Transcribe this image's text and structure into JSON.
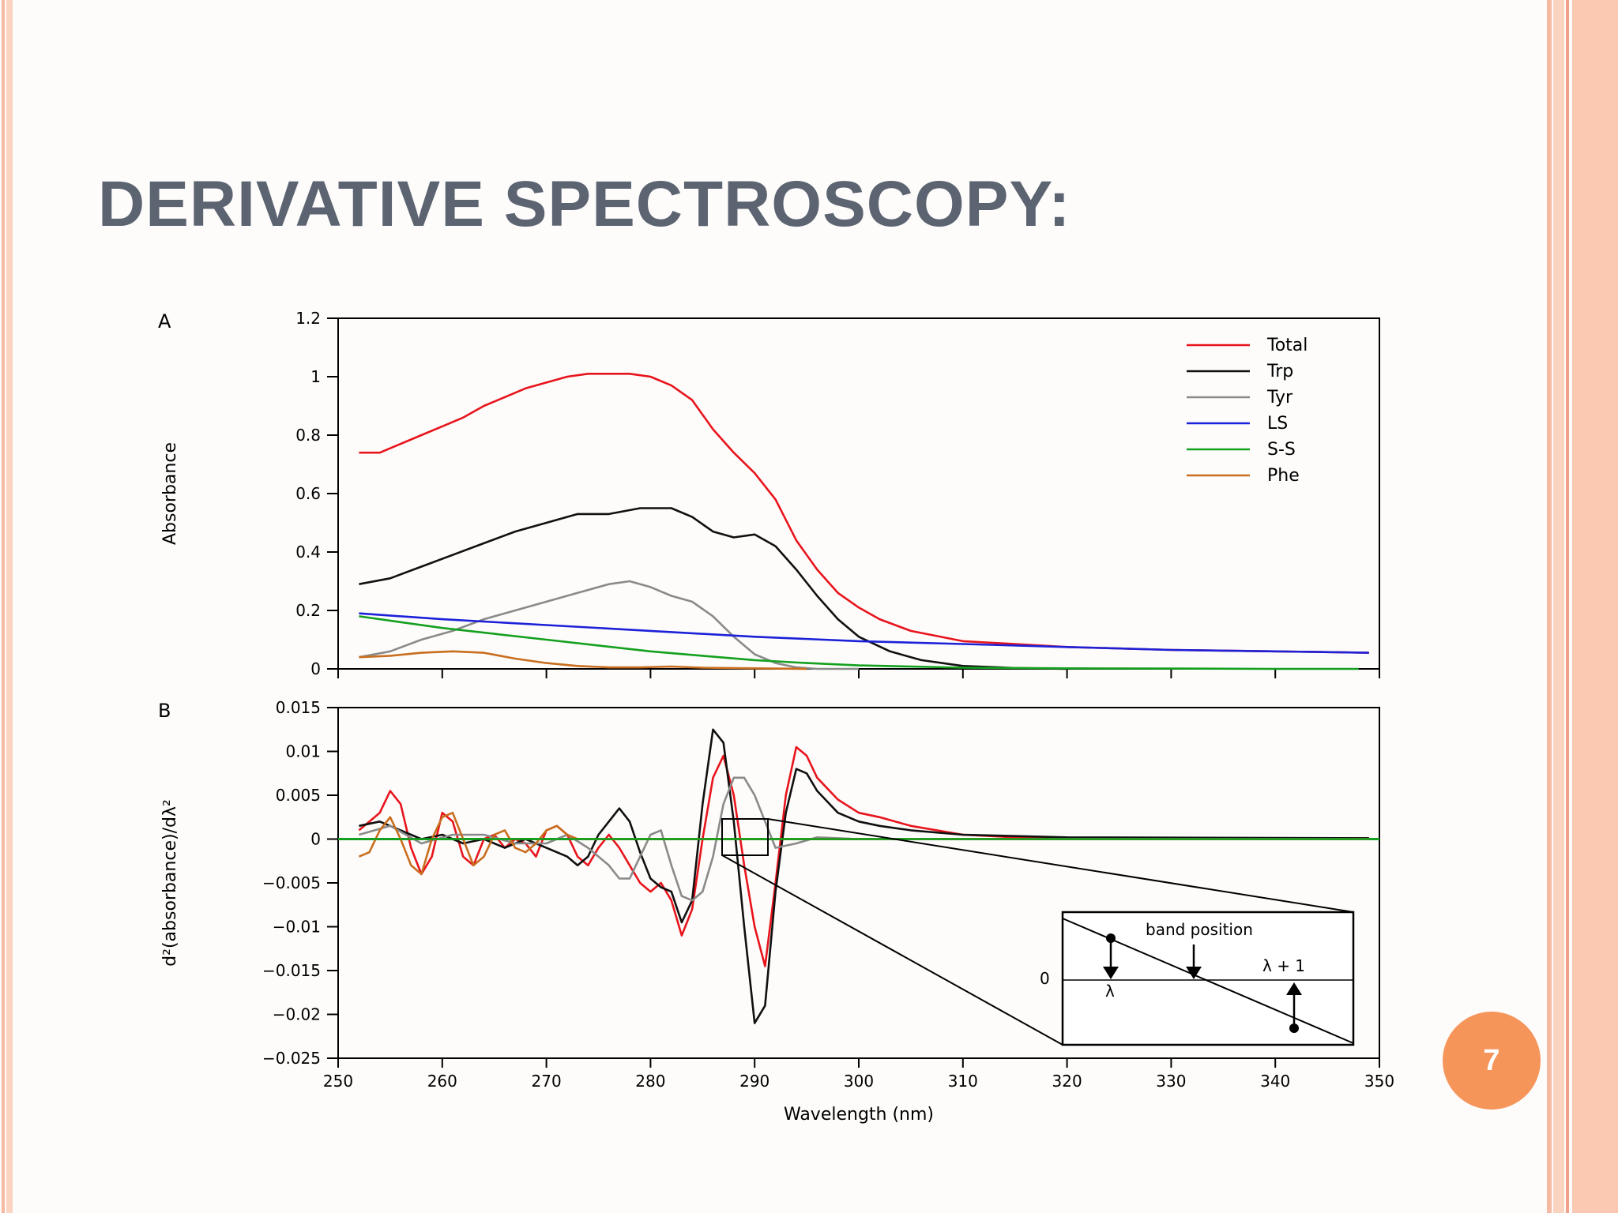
{
  "slide": {
    "title": "DERIVATIVE SPECTROSCOPY:",
    "page_number": "7",
    "accent_color": "#f6955a",
    "frame_colors": [
      "#f6b9a1",
      "#fbd3c1",
      "#f3a088"
    ]
  },
  "chart_data": [
    {
      "id": "A",
      "panel_label": "A",
      "type": "line",
      "xlabel": "",
      "ylabel": "Absorbance",
      "xlim": [
        250,
        350
      ],
      "ylim": [
        0,
        1.2
      ],
      "yticks": [
        "0",
        "0.2",
        "0.4",
        "0.6",
        "0.8",
        "1",
        "1.2"
      ],
      "ytick_values": [
        0,
        0.2,
        0.4,
        0.6,
        0.8,
        1,
        1.2
      ],
      "legend_position": "top-right",
      "grid": false,
      "series": [
        {
          "name": "Total",
          "color": "#e8141c",
          "x": [
            252,
            254,
            256,
            258,
            260,
            262,
            264,
            266,
            268,
            270,
            272,
            274,
            276,
            278,
            280,
            282,
            284,
            286,
            288,
            290,
            292,
            294,
            296,
            298,
            300,
            302,
            305,
            310,
            315,
            320,
            330,
            340,
            349
          ],
          "y": [
            0.74,
            0.74,
            0.77,
            0.8,
            0.83,
            0.86,
            0.9,
            0.93,
            0.96,
            0.98,
            1.0,
            1.01,
            1.01,
            1.01,
            1.0,
            0.97,
            0.92,
            0.82,
            0.74,
            0.67,
            0.58,
            0.44,
            0.34,
            0.26,
            0.21,
            0.17,
            0.13,
            0.095,
            0.085,
            0.075,
            0.065,
            0.06,
            0.055
          ]
        },
        {
          "name": "Trp",
          "color": "#101010",
          "x": [
            252,
            255,
            258,
            261,
            264,
            267,
            270,
            273,
            276,
            279,
            282,
            284,
            286,
            288,
            290,
            292,
            294,
            296,
            298,
            300,
            303,
            306,
            310,
            315,
            320
          ],
          "y": [
            0.29,
            0.31,
            0.35,
            0.39,
            0.43,
            0.47,
            0.5,
            0.53,
            0.53,
            0.55,
            0.55,
            0.52,
            0.47,
            0.45,
            0.46,
            0.42,
            0.34,
            0.25,
            0.17,
            0.11,
            0.06,
            0.03,
            0.01,
            0.003,
            0
          ]
        },
        {
          "name": "Tyr",
          "color": "#8a8a8a",
          "x": [
            252,
            255,
            258,
            261,
            264,
            267,
            270,
            273,
            276,
            278,
            280,
            282,
            284,
            286,
            288,
            290,
            292,
            294,
            296,
            300
          ],
          "y": [
            0.04,
            0.06,
            0.1,
            0.13,
            0.17,
            0.2,
            0.23,
            0.26,
            0.29,
            0.3,
            0.28,
            0.25,
            0.23,
            0.18,
            0.11,
            0.05,
            0.02,
            0.005,
            0,
            0
          ]
        },
        {
          "name": "LS",
          "color": "#1c21d8",
          "x": [
            252,
            260,
            270,
            280,
            290,
            300,
            310,
            320,
            330,
            340,
            349
          ],
          "y": [
            0.19,
            0.17,
            0.15,
            0.13,
            0.11,
            0.095,
            0.085,
            0.075,
            0.065,
            0.06,
            0.055
          ]
        },
        {
          "name": "S-S",
          "color": "#14a01e",
          "x": [
            252,
            256,
            260,
            265,
            270,
            275,
            280,
            285,
            290,
            295,
            300,
            305,
            310,
            320,
            330,
            340,
            348
          ],
          "y": [
            0.18,
            0.16,
            0.14,
            0.12,
            0.1,
            0.08,
            0.06,
            0.045,
            0.03,
            0.02,
            0.012,
            0.008,
            0.004,
            0.002,
            0.001,
            0,
            0
          ]
        },
        {
          "name": "Phe",
          "color": "#c86e1e",
          "x": [
            252,
            255,
            258,
            261,
            264,
            267,
            270,
            273,
            276,
            279,
            282,
            285,
            290,
            295
          ],
          "y": [
            0.04,
            0.045,
            0.055,
            0.06,
            0.055,
            0.035,
            0.02,
            0.01,
            0.005,
            0.005,
            0.008,
            0.004,
            0.002,
            0
          ]
        }
      ]
    },
    {
      "id": "B",
      "panel_label": "B",
      "type": "line",
      "xlabel": "Wavelength (nm)",
      "ylabel": "d²(absorbance)/dλ²",
      "xlim": [
        250,
        350
      ],
      "ylim": [
        -0.025,
        0.015
      ],
      "yticks": [
        "0.015",
        "0.01",
        "0.005",
        "0",
        "−0.005",
        "−0.01",
        "−0.015",
        "−0.02",
        "−0.025"
      ],
      "ytick_values": [
        0.015,
        0.01,
        0.005,
        0,
        -0.005,
        -0.01,
        -0.015,
        -0.02,
        -0.025
      ],
      "xticks": [
        "250",
        "260",
        "270",
        "280",
        "290",
        "300",
        "310",
        "320",
        "330",
        "340",
        "350"
      ],
      "xtick_values": [
        250,
        260,
        270,
        280,
        290,
        300,
        310,
        320,
        330,
        340,
        350
      ],
      "grid": false,
      "series": [
        {
          "name": "Total",
          "color": "#e8141c",
          "x": [
            252,
            254,
            255,
            256,
            257,
            258,
            259,
            260,
            261,
            262,
            263,
            264,
            265,
            266,
            267,
            268,
            269,
            270,
            271,
            272,
            273,
            274,
            275,
            276,
            277,
            278,
            279,
            280,
            281,
            282,
            283,
            284,
            285,
            286,
            287,
            288,
            289,
            290,
            291,
            292,
            293,
            294,
            295,
            296,
            298,
            300,
            302,
            305,
            310,
            315,
            320,
            330,
            349
          ],
          "y": [
            0.001,
            0.003,
            0.0055,
            0.004,
            -0.001,
            -0.004,
            -0.002,
            0.003,
            0.002,
            -0.002,
            -0.003,
            0.0,
            0.0005,
            -0.001,
            0.0,
            -0.0005,
            -0.002,
            0.001,
            0.0015,
            0.0005,
            -0.002,
            -0.003,
            -0.001,
            0.0005,
            -0.001,
            -0.003,
            -0.005,
            -0.006,
            -0.005,
            -0.007,
            -0.011,
            -0.008,
            0.0,
            0.007,
            0.0095,
            0.005,
            -0.003,
            -0.01,
            -0.0145,
            -0.005,
            0.005,
            0.0105,
            0.0095,
            0.007,
            0.0045,
            0.003,
            0.0025,
            0.0015,
            0.0005,
            0.0002,
            0.0001,
            0.0001,
            0.0001
          ]
        },
        {
          "name": "Trp",
          "color": "#101010",
          "x": [
            252,
            254,
            256,
            258,
            260,
            262,
            264,
            266,
            268,
            270,
            272,
            273,
            274,
            275,
            276,
            277,
            278,
            279,
            280,
            281,
            282,
            283,
            284,
            285,
            286,
            287,
            288,
            289,
            290,
            291,
            292,
            293,
            294,
            295,
            296,
            298,
            300,
            302,
            305,
            310,
            320,
            349
          ],
          "y": [
            0.0015,
            0.002,
            0.001,
            0.0,
            0.0005,
            -0.0005,
            0.0,
            -0.001,
            0.0,
            -0.001,
            -0.002,
            -0.003,
            -0.002,
            0.0005,
            0.002,
            0.0035,
            0.002,
            -0.0015,
            -0.0045,
            -0.0055,
            -0.006,
            -0.0095,
            -0.007,
            0.004,
            0.0125,
            0.011,
            0.002,
            -0.01,
            -0.021,
            -0.019,
            -0.006,
            0.003,
            0.008,
            0.0075,
            0.0055,
            0.003,
            0.002,
            0.0015,
            0.001,
            0.0005,
            0.0002,
            0.0001
          ]
        },
        {
          "name": "Tyr",
          "color": "#8a8a8a",
          "x": [
            252,
            255,
            258,
            261,
            264,
            267,
            270,
            272,
            274,
            276,
            277,
            278,
            279,
            280,
            281,
            282,
            283,
            284,
            285,
            286,
            287,
            288,
            289,
            290,
            291,
            292,
            294,
            296,
            298,
            300,
            305,
            349
          ],
          "y": [
            0.0005,
            0.0015,
            -0.0005,
            0.0005,
            0.0005,
            -0.0005,
            -0.0005,
            0.0005,
            -0.001,
            -0.003,
            -0.0045,
            -0.0045,
            -0.002,
            0.0005,
            0.001,
            -0.003,
            -0.0065,
            -0.007,
            -0.006,
            -0.002,
            0.004,
            0.007,
            0.007,
            0.005,
            0.002,
            -0.001,
            -0.0005,
            0.0002,
            0.0001,
            0.0,
            0.0,
            0.0
          ]
        },
        {
          "name": "Phe",
          "color": "#c86e1e",
          "x": [
            252,
            253,
            254,
            255,
            256,
            257,
            258,
            259,
            260,
            261,
            262,
            263,
            264,
            265,
            266,
            267,
            268,
            269,
            270,
            271,
            272,
            273,
            274,
            276,
            280,
            290,
            349
          ],
          "y": [
            -0.002,
            -0.0015,
            0.001,
            0.0025,
            0.0,
            -0.003,
            -0.004,
            0.0,
            0.0025,
            0.003,
            0.0,
            -0.003,
            -0.002,
            0.0005,
            0.001,
            -0.001,
            -0.0015,
            -0.0005,
            0.001,
            0.0015,
            0.0005,
            0.0,
            0.0,
            0.0,
            0.0,
            0.0,
            0.0
          ]
        },
        {
          "name": "S-S",
          "color": "#14a01e",
          "x": [
            252,
            349
          ],
          "y": [
            0.0,
            0.0
          ]
        }
      ],
      "inset": {
        "annotation": "band position",
        "zero_label": "0",
        "left_label": "λ",
        "right_label": "λ + 1"
      }
    }
  ]
}
